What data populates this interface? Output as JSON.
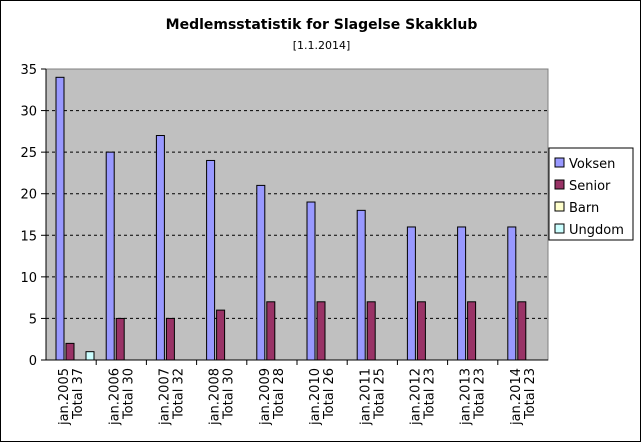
{
  "chart_data": {
    "type": "bar",
    "title": "Medlemsstatistik for Slagelse Skakklub",
    "subtitle": "[1.1.2014]",
    "xlabel": "",
    "ylabel": "",
    "ylim": [
      0,
      35
    ],
    "yticks": [
      0,
      5,
      10,
      15,
      20,
      25,
      30,
      35
    ],
    "grid": true,
    "legend_position": "right",
    "categories": [
      [
        "jan.2005",
        "Total 37"
      ],
      [
        "jan.2006",
        "Total 30"
      ],
      [
        "jan.2007",
        "Total 32"
      ],
      [
        "jan.2008",
        "Total 30"
      ],
      [
        "jan.2009",
        "Total 28"
      ],
      [
        "jan.2010",
        "Total 26"
      ],
      [
        "jan.2011",
        "Total 25"
      ],
      [
        "jan.2012",
        "Total 23"
      ],
      [
        "jan.2013",
        "Total 23"
      ],
      [
        "jan.2014",
        "Total 23"
      ]
    ],
    "series": [
      {
        "name": "Voksen",
        "color": "#9999ff",
        "values": [
          34,
          25,
          27,
          24,
          21,
          19,
          18,
          16,
          16,
          16
        ]
      },
      {
        "name": "Senior",
        "color": "#993366",
        "values": [
          2,
          5,
          5,
          6,
          7,
          7,
          7,
          7,
          7,
          7
        ]
      },
      {
        "name": "Barn",
        "color": "#ffffcc",
        "values": [
          0,
          0,
          0,
          0,
          0,
          0,
          0,
          0,
          0,
          0
        ]
      },
      {
        "name": "Ungdom",
        "color": "#ccffff",
        "values": [
          1,
          0,
          0,
          0,
          0,
          0,
          0,
          0,
          0,
          0
        ]
      }
    ],
    "colors": {
      "plot_background": "#c0c0c0",
      "grid": "#000000",
      "frame": "#808080"
    }
  }
}
